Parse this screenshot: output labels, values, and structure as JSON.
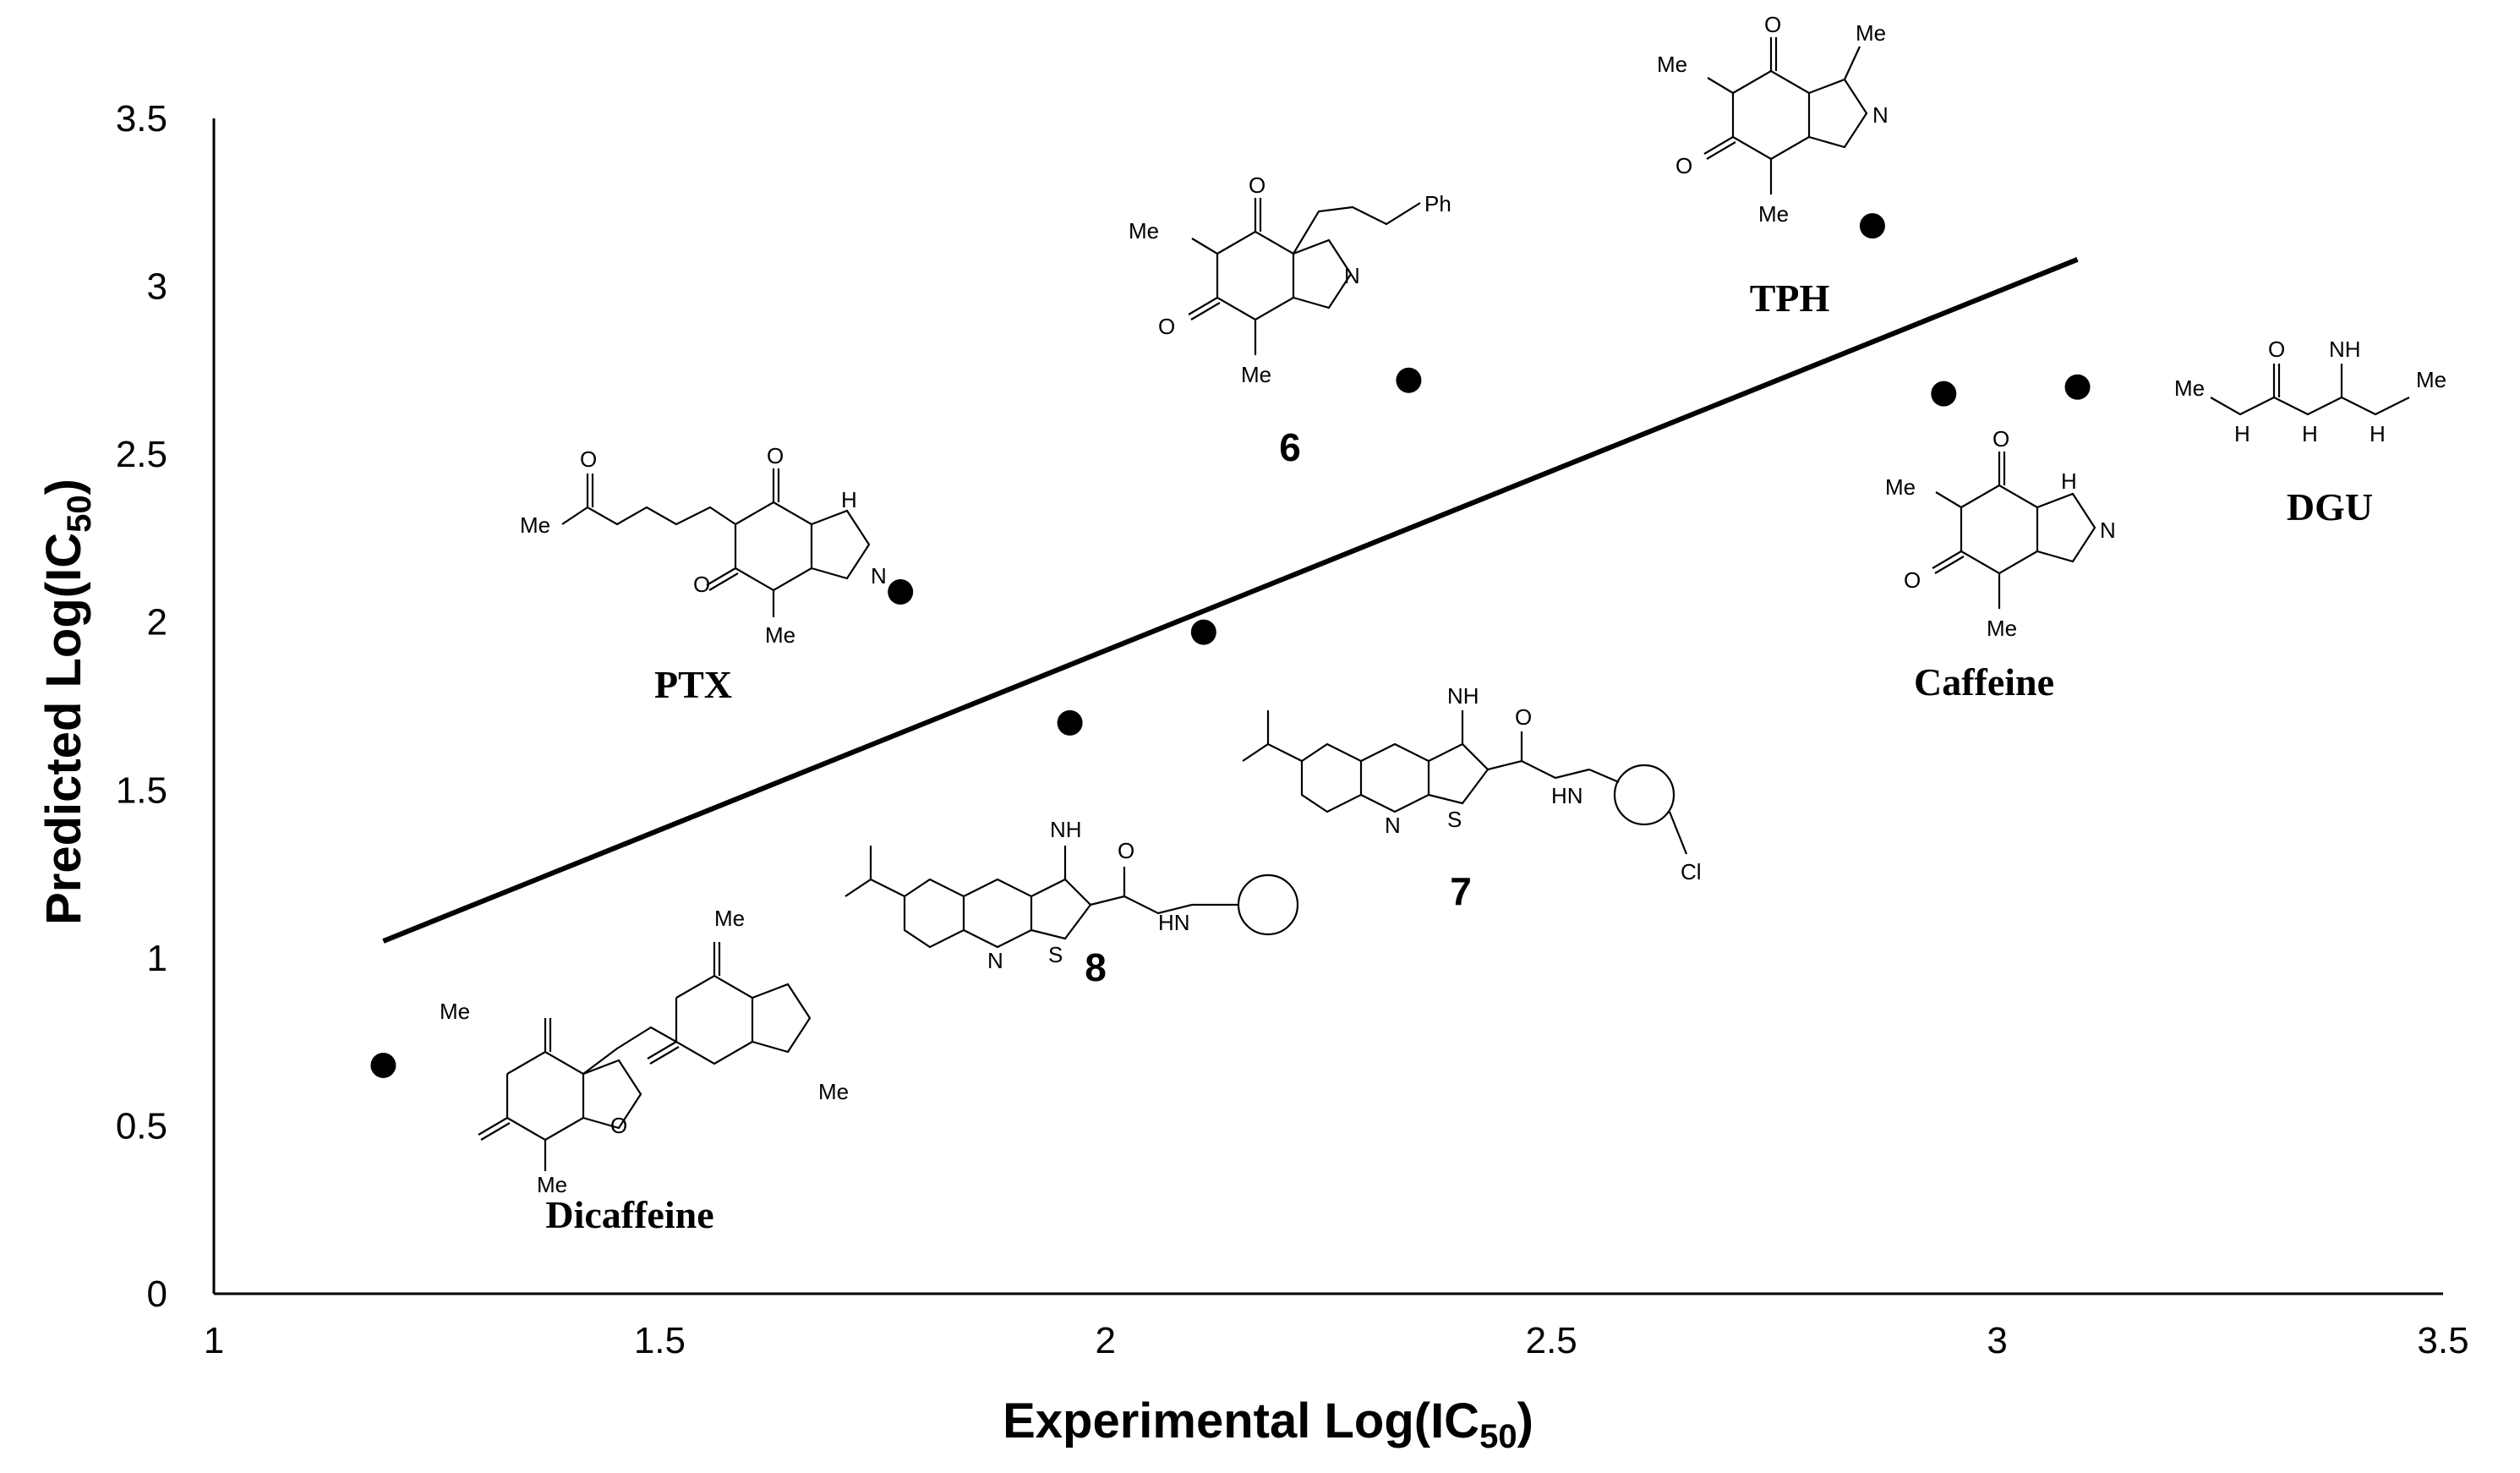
{
  "chart_data": {
    "type": "scatter",
    "xlabel": "Experimental Log(IC",
    "xlabel_sub": "50",
    "xlabel_end": ")",
    "ylabel": "Predicted Log(IC",
    "ylabel_sub": "50",
    "ylabel_end": ")",
    "xlim": [
      1,
      3.5
    ],
    "ylim": [
      0,
      3.5
    ],
    "xticks": [
      "1",
      "1.5",
      "2",
      "2.5",
      "3",
      "3.5"
    ],
    "yticks": [
      "0",
      "0.5",
      "1",
      "1.5",
      "2",
      "2.5",
      "3",
      "3.5"
    ],
    "grid": false,
    "points": [
      {
        "label": "Dicaffeine",
        "x": 1.19,
        "y": 0.68
      },
      {
        "label": "PTX",
        "x": 1.77,
        "y": 2.09
      },
      {
        "label": "8",
        "x": 1.96,
        "y": 1.7
      },
      {
        "label": "7",
        "x": 2.11,
        "y": 1.97
      },
      {
        "label": "6",
        "x": 2.34,
        "y": 2.72
      },
      {
        "label": "TPH",
        "x": 2.86,
        "y": 3.18
      },
      {
        "label": "Caffeine",
        "x": 2.94,
        "y": 2.68
      },
      {
        "label": "DGU",
        "x": 3.09,
        "y": 2.7
      }
    ],
    "fit_line": {
      "x": [
        1.19,
        3.09
      ],
      "y": [
        1.05,
        3.08
      ]
    },
    "marker_color": "#000000",
    "line_color": "#000000"
  },
  "compound_labels": {
    "dicaffeine": "Dicaffeine",
    "ptx": "PTX",
    "c8": "8",
    "c7": "7",
    "c6": "6",
    "tph": "TPH",
    "caffeine": "Caffeine",
    "dgu": "DGU"
  },
  "atom_labels": {
    "me": "Me",
    "o": "O",
    "n": "N",
    "h": "H",
    "nh": "NH",
    "hn": "HN",
    "nh2": "NH",
    "ph": "Ph",
    "cl": "Cl",
    "s": "S",
    "nh_imine": "NH"
  }
}
